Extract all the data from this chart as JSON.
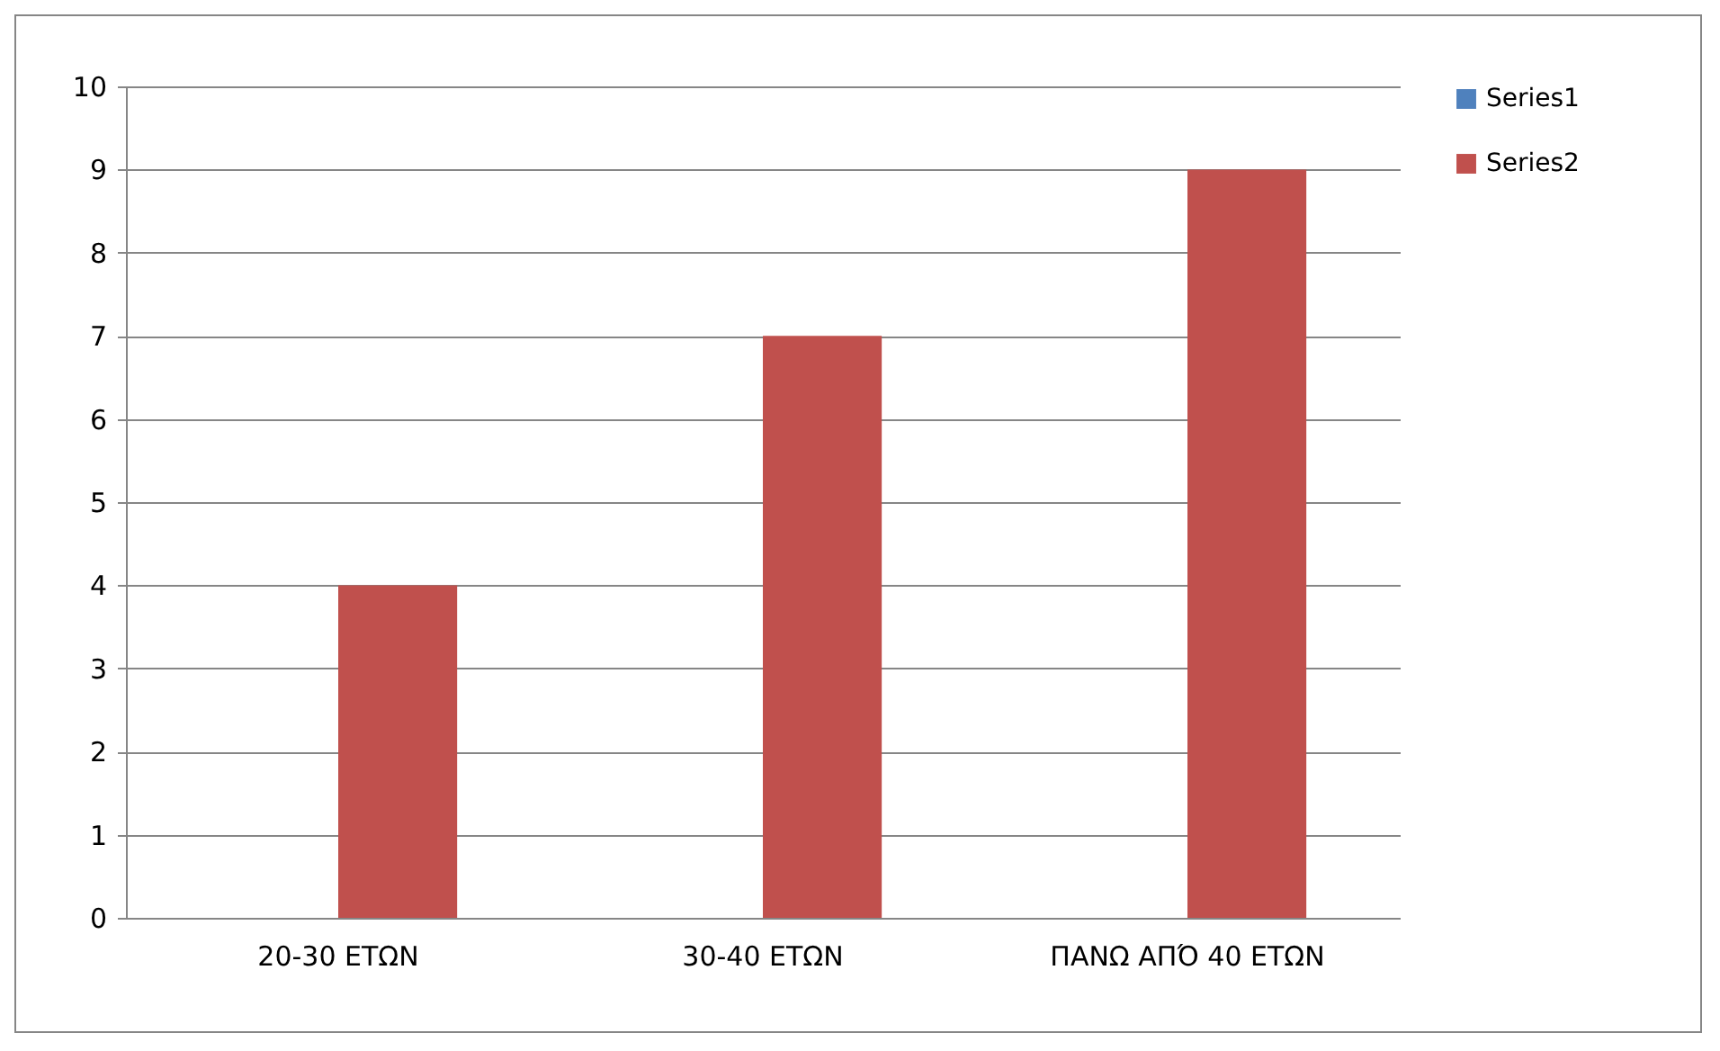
{
  "chart_data": {
    "type": "bar",
    "categories": [
      "20-30 ΕΤΩΝ",
      "30-40 ΕΤΩΝ",
      "ΠΑΝΩ ΑΠΌ 40 ΕΤΩΝ"
    ],
    "series": [
      {
        "name": "Series1",
        "color": "#4f81bd",
        "values": [
          null,
          null,
          null
        ]
      },
      {
        "name": "Series2",
        "color": "#c0504d",
        "values": [
          4,
          7,
          9
        ]
      }
    ],
    "ylim": [
      0,
      10
    ],
    "yticks": [
      0,
      1,
      2,
      3,
      4,
      5,
      6,
      7,
      8,
      9,
      10
    ],
    "grid": "y",
    "legend": "right"
  }
}
